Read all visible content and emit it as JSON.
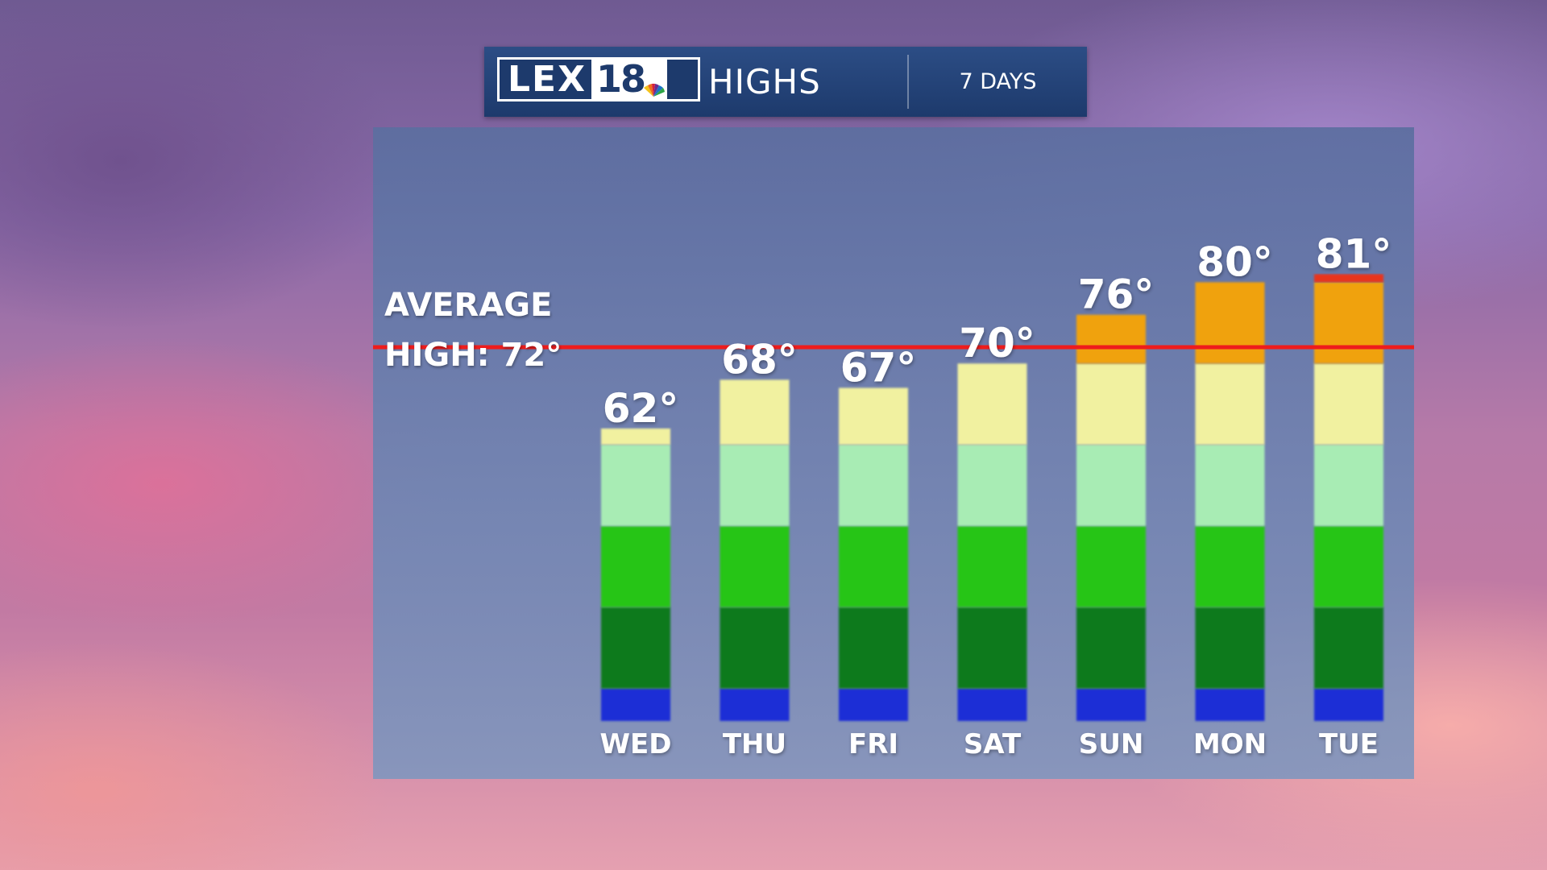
{
  "header": {
    "logo_text": "LEX",
    "logo_number": "18",
    "title": "HIGHS",
    "period": "7 DAYS"
  },
  "average": {
    "line1": "AVERAGE",
    "line2": "HIGH: 72°",
    "line_color": "#ee1c1c"
  },
  "chart_data": {
    "type": "bar",
    "categories": [
      "WED",
      "THU",
      "FRI",
      "SAT",
      "SUN",
      "MON",
      "TUE"
    ],
    "values": [
      62,
      68,
      67,
      70,
      76,
      80,
      81
    ],
    "value_labels": [
      "62°",
      "68°",
      "67°",
      "70°",
      "76°",
      "80°",
      "81°"
    ],
    "title": "HIGHS",
    "average_high": 72,
    "scale_note": "bars are color-banded by temperature range",
    "color_bands": [
      {
        "from": 0,
        "to": 30,
        "color": "#1a2fd6"
      },
      {
        "from": 30,
        "to": 40,
        "color": "#0f7a1c"
      },
      {
        "from": 40,
        "to": 50,
        "color": "#25c517"
      },
      {
        "from": 50,
        "to": 60,
        "color": "#a8ecb4"
      },
      {
        "from": 60,
        "to": 70,
        "color": "#f1f1a0"
      },
      {
        "from": 70,
        "to": 80,
        "color": "#f0a20f"
      },
      {
        "from": 80,
        "to": 90,
        "color": "#e8361c"
      }
    ],
    "ylim": [
      26,
      96
    ],
    "grid": false,
    "legend": "none"
  }
}
